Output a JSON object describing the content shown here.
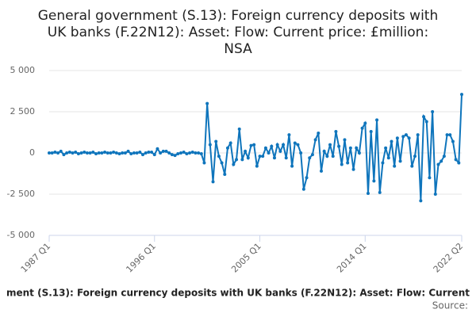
{
  "chart_data": {
    "type": "line",
    "title": [
      "General government (S.13): Foreign currency deposits with",
      "UK banks (F.22N12): Asset: Flow: Current price: £million:",
      "NSA"
    ],
    "categories": [
      "1987 Q1",
      null,
      null,
      null,
      null,
      null,
      null,
      null,
      null,
      null,
      null,
      null,
      null,
      null,
      null,
      null,
      null,
      null,
      null,
      null,
      null,
      null,
      null,
      null,
      null,
      null,
      null,
      null,
      null,
      null,
      null,
      null,
      null,
      null,
      null,
      null,
      "1996 Q1",
      null,
      null,
      null,
      null,
      null,
      null,
      null,
      null,
      null,
      null,
      null,
      null,
      null,
      null,
      null,
      null,
      null,
      null,
      null,
      null,
      null,
      null,
      null,
      null,
      null,
      null,
      null,
      null,
      null,
      null,
      null,
      null,
      null,
      null,
      null,
      "2005 Q1",
      null,
      null,
      null,
      null,
      null,
      null,
      null,
      null,
      null,
      null,
      null,
      null,
      null,
      null,
      null,
      null,
      null,
      null,
      null,
      null,
      null,
      null,
      null,
      null,
      null,
      null,
      null,
      null,
      null,
      null,
      null,
      null,
      null,
      null,
      null,
      "2014 Q1",
      null,
      null,
      null,
      null,
      null,
      null,
      null,
      null,
      null,
      null,
      null,
      null,
      null,
      null,
      null,
      null,
      null,
      null,
      null,
      null,
      null,
      null,
      null,
      null,
      null,
      null,
      null,
      null,
      null,
      null,
      null,
      null,
      "2022 Q2"
    ],
    "series": [
      {
        "name": "ment (S.13): Foreign currency deposits with UK banks (F.22N12): Asset: Flow: Current",
        "color": "#0f75bc",
        "values": [
          0,
          0,
          50,
          0,
          100,
          -100,
          0,
          50,
          0,
          50,
          -50,
          0,
          50,
          0,
          0,
          50,
          -50,
          0,
          0,
          50,
          0,
          0,
          50,
          0,
          -50,
          0,
          0,
          100,
          -50,
          0,
          0,
          50,
          -100,
          0,
          50,
          50,
          -100,
          250,
          0,
          100,
          100,
          0,
          -100,
          -150,
          -50,
          0,
          50,
          -50,
          0,
          50,
          0,
          0,
          -50,
          -600,
          3000,
          500,
          -1750,
          700,
          -200,
          -600,
          -1300,
          300,
          600,
          -700,
          -400,
          1450,
          -400,
          100,
          -300,
          450,
          500,
          -800,
          -200,
          -200,
          300,
          0,
          400,
          -300,
          500,
          100,
          500,
          -300,
          1100,
          -800,
          600,
          500,
          0,
          -2200,
          -1500,
          -300,
          -100,
          800,
          1200,
          -1100,
          100,
          -200,
          500,
          -200,
          1300,
          400,
          -700,
          800,
          -600,
          300,
          -1000,
          300,
          0,
          1500,
          1800,
          -2450,
          1300,
          -1700,
          2000,
          -2400,
          -600,
          300,
          -300,
          700,
          -800,
          900,
          -500,
          1000,
          1100,
          900,
          -800,
          -200,
          1100,
          -2900,
          2200,
          1900,
          -1500,
          2500,
          -2500,
          -700,
          -500,
          -200,
          1100,
          1100,
          700,
          -400,
          -600,
          3550
        ]
      }
    ],
    "source": "Source:",
    "ylim": [
      -5000,
      5000
    ],
    "yticks": [
      {
        "value": -5000,
        "label": "-5 000"
      },
      {
        "value": -2500,
        "label": "-2 500"
      },
      0,
      {
        "value": 2500,
        "label": "2 500"
      },
      {
        "value": 5000,
        "label": "5 000"
      }
    ],
    "grid": true
  }
}
